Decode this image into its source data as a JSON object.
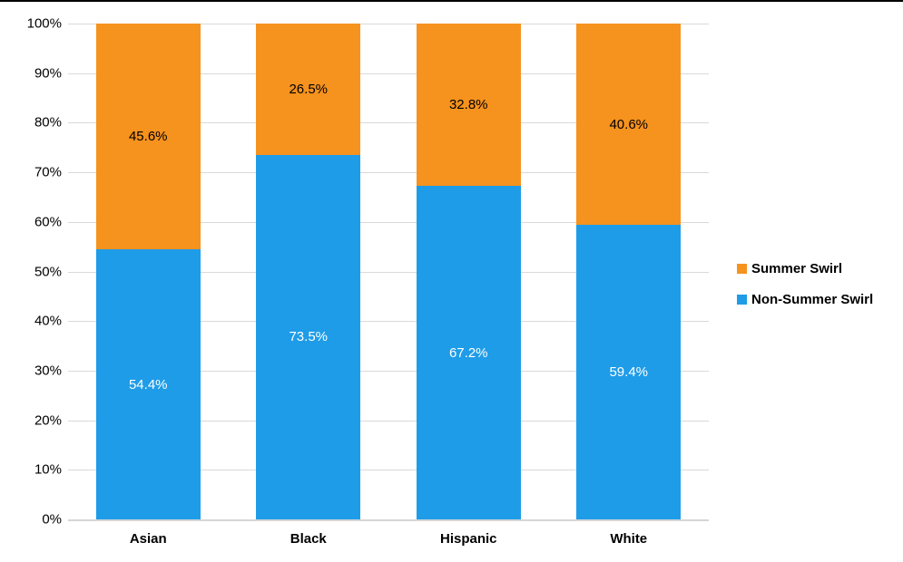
{
  "chart_data": {
    "type": "bar",
    "stacked": true,
    "orientation": "vertical",
    "title": "",
    "xlabel": "",
    "ylabel": "",
    "ylim": [
      0,
      100
    ],
    "grid": true,
    "legend_position": "right",
    "categories": [
      "Asian",
      "Black",
      "Hispanic",
      "White"
    ],
    "yticks": [
      "100%",
      "90%",
      "80%",
      "70%",
      "60%",
      "50%",
      "40%",
      "30%",
      "20%",
      "10%",
      "0%"
    ],
    "series": [
      {
        "name": "Summer Swirl",
        "color": "#F6921E",
        "label_color": "#000000",
        "values": [
          45.6,
          26.5,
          32.8,
          40.6
        ]
      },
      {
        "name": "Non-Summer Swirl",
        "color": "#1E9CE8",
        "label_color": "#FFFFFF",
        "values": [
          54.4,
          73.5,
          67.2,
          59.4
        ]
      }
    ],
    "data_label_suffix": "%"
  },
  "colors": {
    "gridline": "#d9d9d9",
    "axis_line": "#d6d6d6",
    "top_border": "#000000",
    "background": "#ffffff"
  }
}
